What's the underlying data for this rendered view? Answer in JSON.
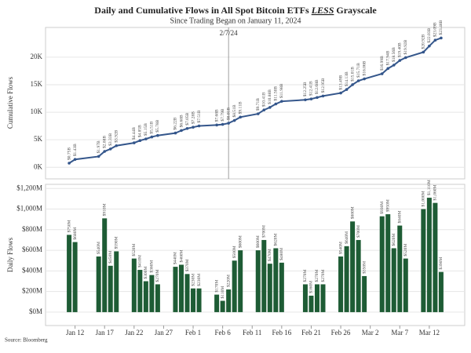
{
  "chart_data": {
    "type": "bar_line",
    "title": [
      "Daily and Cumulative Flows in All Spot Bitcoin ETFs ",
      "LESS",
      " Grayscale"
    ],
    "subtitle": "Since Trading Began on January 11, 2024",
    "source": "Source: Bloomberg",
    "x": [
      "Jan 11",
      "Jan 12",
      "Jan 16",
      "Jan 17",
      "Jan 18",
      "Jan 19",
      "Jan 22",
      "Jan 23",
      "Jan 24",
      "Jan 25",
      "Jan 26",
      "Jan 29",
      "Jan 30",
      "Jan 31",
      "Feb 1",
      "Feb 2",
      "Feb 5",
      "Feb 6",
      "Feb 7",
      "Feb 8",
      "Feb 9",
      "Feb 12",
      "Feb 13",
      "Feb 14",
      "Feb 15",
      "Feb 16",
      "Feb 20",
      "Feb 21",
      "Feb 22",
      "Feb 23",
      "Feb 26",
      "Feb 27",
      "Feb 28",
      "Feb 29",
      "Mar 1",
      "Mar 4",
      "Mar 5",
      "Mar 6",
      "Mar 7",
      "Mar 8",
      "Mar 11",
      "Mar 12",
      "Mar 13",
      "Mar 14"
    ],
    "xlim": [
      "Jan 7",
      "Mar 18"
    ],
    "xticks": [
      "Jan 12",
      "Jan 17",
      "Jan 22",
      "Jan 27",
      "Feb 1",
      "Feb 6",
      "Feb 11",
      "Feb 16",
      "Feb 21",
      "Feb 26",
      "Mar 2",
      "Mar 7",
      "Mar 12"
    ],
    "annotation": {
      "text": "2/7/24",
      "x": "Feb 7"
    },
    "top": {
      "ylabel": "Cumulative Flows",
      "ylim": [
        -2100,
        25400
      ],
      "yticks": [
        {
          "value": 0,
          "label": "0K"
        },
        {
          "value": 5000,
          "label": "5K"
        },
        {
          "value": 10000,
          "label": "10K"
        },
        {
          "value": 15000,
          "label": "15K"
        },
        {
          "value": 20000,
          "label": "20K"
        }
      ],
      "series": [
        {
          "name": "Cumulative Flows",
          "color": "#34568b",
          "values": [
            750,
            1430,
            1970,
            2880,
            3330,
            3920,
            4440,
            4850,
            5150,
            5510,
            5780,
            6220,
            6680,
            7050,
            7280,
            7510,
            7680,
            7790,
            8010,
            8510,
            9110,
            9710,
            10410,
            10880,
            11500,
            11980,
            12250,
            12410,
            12680,
            12950,
            13490,
            14130,
            15010,
            15710,
            16060,
            16990,
            17940,
            18560,
            19400,
            19920,
            20920,
            22030,
            23090,
            23480
          ],
          "value_labels": [
            "$0.75B",
            "$1.43B",
            "$1.97B",
            "$2.88B",
            "$3.33B",
            "$3.92B",
            "$4.44B",
            "$4.85B",
            "$5.15B",
            "$5.51B",
            "$5.78B",
            "$6.22B",
            "$6.68B",
            "$7.05B",
            "$7.28B",
            "$7.51B",
            "$7.68B",
            "$7.79B",
            "$8.01B",
            "$8.51B",
            "$9.11B",
            "$9.71B",
            "$10.41B",
            "$10.88B",
            "$11.50B",
            "$11.98B",
            "$12.25B",
            "$12.41B",
            "$12.68B",
            "$12.95B",
            "$13.49B",
            "$14.13B",
            "$15.01B",
            "$15.71B",
            "$16.06B",
            "$16.99B",
            "$17.94B",
            "$18.56B",
            "$19.40B",
            "$19.92B",
            "$20.92B",
            "$22.03B",
            "$23.09B",
            "$23.48B"
          ]
        }
      ]
    },
    "bottom": {
      "ylabel": "Daily Flows",
      "ylim": [
        -130,
        1240
      ],
      "yticks": [
        {
          "value": 0,
          "label": "$0M"
        },
        {
          "value": 200,
          "label": "$200M"
        },
        {
          "value": 400,
          "label": "$400M"
        },
        {
          "value": 600,
          "label": "$600M"
        },
        {
          "value": 800,
          "label": "$800M"
        },
        {
          "value": 1000,
          "label": "$1,000M"
        },
        {
          "value": 1200,
          "label": "$1,200M"
        }
      ],
      "series": [
        {
          "name": "Daily Flows",
          "color": "#1e5c35",
          "values": [
            750,
            680,
            540,
            910,
            450,
            590,
            520,
            410,
            300,
            360,
            270,
            440,
            460,
            370,
            230,
            230,
            170,
            110,
            220,
            500,
            600,
            600,
            700,
            470,
            620,
            480,
            270,
            160,
            270,
            270,
            540,
            640,
            880,
            700,
            350,
            930,
            950,
            620,
            840,
            520,
            1000,
            1110,
            1060,
            390
          ],
          "value_labels": [
            "$750M",
            "$680M",
            "$540M",
            "$910M",
            "$450M",
            "$590M",
            "$520M",
            "$410M",
            "$300M",
            "$360M",
            "$270M",
            "$440M",
            "$460M",
            "$370M",
            "$230M",
            "$230M",
            "$170M",
            "$110M",
            "$220M",
            "$500M",
            "$600M",
            "$600M",
            "$700M",
            "$470M",
            "$620M",
            "$480M",
            "$270M",
            "$160M",
            "$270M",
            "$270M",
            "$540M",
            "$640M",
            "$880M",
            "$700M",
            "$350M",
            "$930M",
            "$950M",
            "$620M",
            "$840M",
            "$520M",
            "$1,000M",
            "$1,110M",
            "$1,060M",
            "$390M"
          ]
        }
      ]
    }
  }
}
